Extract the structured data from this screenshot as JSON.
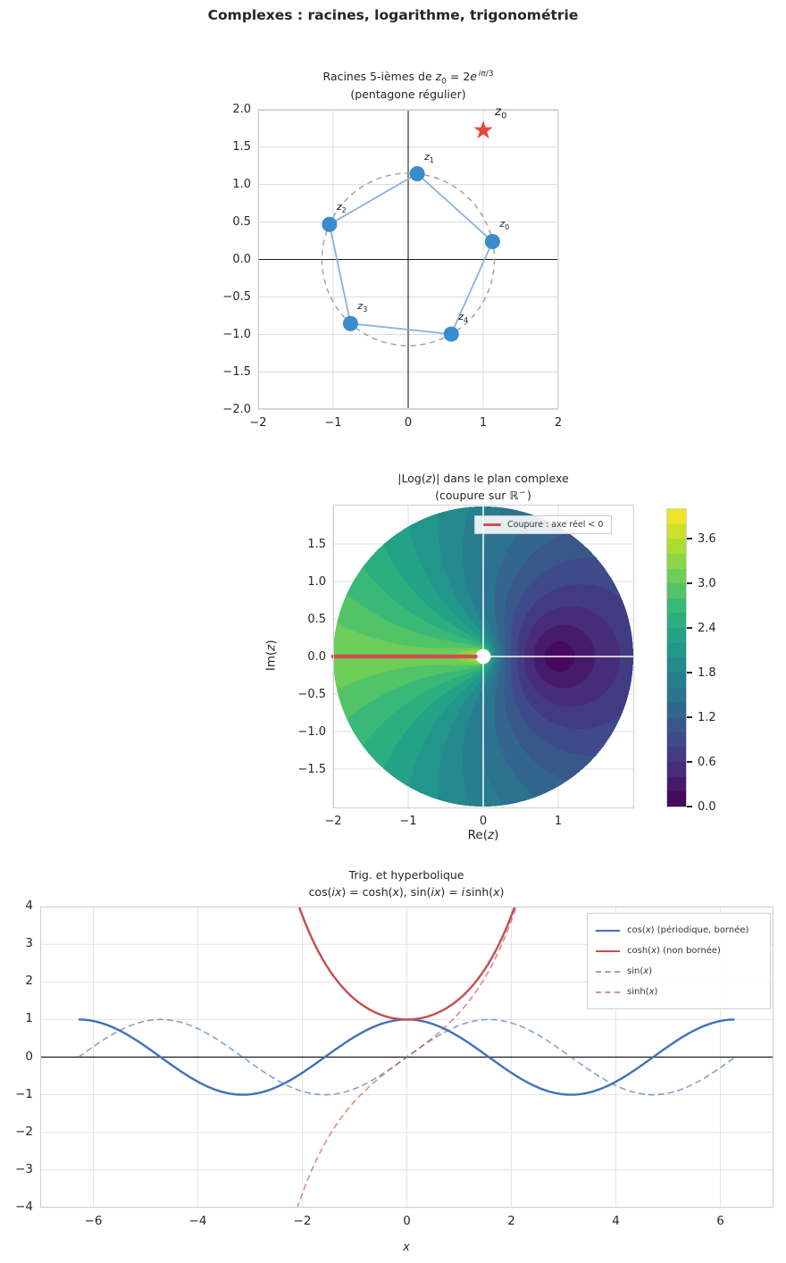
{
  "figure": {
    "title": "Complexes : racines, logarithme, trigonométrie"
  },
  "colors": {
    "marker_blue": "#3a8ccd",
    "pentagon_edge_blue": "#8ab0e2",
    "star_red": "#e8473c",
    "cut_red": "#cf4f52",
    "deep_blue": "#4170bf",
    "deep_red": "#c44e52",
    "grid": "#dcdcdc",
    "spine": "#cfcfcf",
    "text": "#262626",
    "dashed_circle_gray": "#a3a3a3"
  },
  "chart_data": [
    {
      "type": "scatter",
      "title_html": "Racines 5-ièmes de <i>z</i><sub>0</sub> = 2<i>e</i><sup>&#8201;<i>iπ</i>/3</sup>",
      "subtitle": "(pentagone régulier)",
      "xlim": [
        -2,
        2
      ],
      "ylim": [
        -2,
        2
      ],
      "grid": true,
      "x_ticks": [
        {
          "v": -2,
          "label": "−2"
        },
        {
          "v": -1,
          "label": "−1"
        },
        {
          "v": 0,
          "label": "0"
        },
        {
          "v": 1,
          "label": "1"
        },
        {
          "v": 2,
          "label": "2"
        }
      ],
      "y_ticks": [
        {
          "v": 2.0,
          "label": "2.0"
        },
        {
          "v": 1.5,
          "label": "1.5"
        },
        {
          "v": 1.0,
          "label": "1.0"
        },
        {
          "v": 0.5,
          "label": "0.5"
        },
        {
          "v": 0.0,
          "label": "0.0"
        },
        {
          "v": -0.5,
          "label": "−0.5"
        },
        {
          "v": -1.0,
          "label": "−1.0"
        },
        {
          "v": -1.5,
          "label": "−1.5"
        },
        {
          "v": -2.0,
          "label": "−2.0"
        }
      ],
      "circle_radius": 1.1487,
      "points": [
        {
          "label_html": "<i>z</i><sub>0</sub>",
          "re": 1.1236,
          "im": 0.2388
        },
        {
          "label_html": "<i>z</i><sub>1</sub>",
          "re": 0.1201,
          "im": 1.1424
        },
        {
          "label_html": "<i>z</i><sub>2</sub>",
          "re": -1.0493,
          "im": 0.4672
        },
        {
          "label_html": "<i>z</i><sub>3</sub>",
          "re": -0.7687,
          "im": -0.8537
        },
        {
          "label_html": "<i>z</i><sub>4</sub>",
          "re": 0.5743,
          "im": -0.9948
        }
      ],
      "star": {
        "label_html": "<i>z</i><sub>0</sub>",
        "re": 1.0,
        "im": 1.7321
      }
    },
    {
      "type": "heatmap",
      "title_html": "|Log(<i>z</i>)| dans le plan complexe",
      "subtitle_html": "(coupure sur ℝ<sup>&#8202;−</sup>&#8202;)",
      "xlabel_html": "Re(<i>z</i>)",
      "ylabel_html": "Im(<i>z</i>)",
      "x_ticks": [
        {
          "v": -2,
          "label": "−2"
        },
        {
          "v": -1,
          "label": "−1"
        },
        {
          "v": 0,
          "label": "0"
        },
        {
          "v": 1,
          "label": "1"
        }
      ],
      "y_ticks": [
        {
          "v": 1.5,
          "label": "1.5"
        },
        {
          "v": 1.0,
          "label": "1.0"
        },
        {
          "v": 0.5,
          "label": "0.5"
        },
        {
          "v": 0.0,
          "label": "0.0"
        },
        {
          "v": -0.5,
          "label": "−0.5"
        },
        {
          "v": -1.0,
          "label": "−1.0"
        },
        {
          "v": -1.5,
          "label": "−1.5"
        }
      ],
      "value_function": "|Log(z)| = sqrt( ln|z|^2 + Arg(z)^2 ),  Arg ∈ (−π, π]",
      "domain": "disque |z| ≤ 2, masque |z| < 0.1",
      "disk_radius": 2,
      "mask_radius": 0.1,
      "levels": {
        "min": 0,
        "max": 4,
        "step": 0.2,
        "n_bands": 20
      },
      "colormap": "viridis",
      "viridis_stops": [
        "#440154",
        "#482878",
        "#3e4989",
        "#31688e",
        "#26828e",
        "#1f9e89",
        "#35b779",
        "#6ece58",
        "#b5de2b",
        "#fde725"
      ],
      "cut": {
        "y": 0,
        "x_from": -2,
        "x_to": -0.1,
        "label": "Coupure : axe réel < 0"
      },
      "colorbar_ticks": [
        {
          "v": 3.6,
          "label": "3.6"
        },
        {
          "v": 3.0,
          "label": "3.0"
        },
        {
          "v": 2.4,
          "label": "2.4"
        },
        {
          "v": 1.8,
          "label": "1.8"
        },
        {
          "v": 1.2,
          "label": "1.2"
        },
        {
          "v": 0.6,
          "label": "0.6"
        },
        {
          "v": 0.0,
          "label": "0.0"
        }
      ]
    },
    {
      "type": "line",
      "title": "Trig. et hyperbolique",
      "subtitle_html": "cos(<i>ix</i>) = cosh(<i>x</i>), sin(<i>ix</i>) = <i>i</i>&#8202;sinh(<i>x</i>)",
      "xlabel_html": "<i>x</i>",
      "xlim": [
        -7.02,
        7.02
      ],
      "ylim": [
        -4,
        4
      ],
      "x_domain": [
        -6.2832,
        6.2832
      ],
      "x_ticks": [
        {
          "v": -6,
          "label": "−6"
        },
        {
          "v": -4,
          "label": "−4"
        },
        {
          "v": -2,
          "label": "−2"
        },
        {
          "v": 0,
          "label": "0"
        },
        {
          "v": 2,
          "label": "2"
        },
        {
          "v": 4,
          "label": "4"
        },
        {
          "v": 6,
          "label": "6"
        }
      ],
      "y_ticks": [
        {
          "v": 4,
          "label": "4"
        },
        {
          "v": 3,
          "label": "3"
        },
        {
          "v": 2,
          "label": "2"
        },
        {
          "v": 1,
          "label": "1"
        },
        {
          "v": 0,
          "label": "0"
        },
        {
          "v": -1,
          "label": "−1"
        },
        {
          "v": -2,
          "label": "−2"
        },
        {
          "v": -3,
          "label": "−3"
        },
        {
          "v": -4,
          "label": "−4"
        }
      ],
      "series": [
        {
          "fn": "cos",
          "label_html": "cos(<i>x</i>) (périodique, bornée)",
          "color": "#4170bf",
          "dashed": false,
          "width": 2.4,
          "opacity": 1
        },
        {
          "fn": "cosh",
          "label_html": "cosh(<i>x</i>) (non bornée)",
          "color": "#c44e52",
          "dashed": false,
          "width": 2.4,
          "opacity": 1
        },
        {
          "fn": "sin",
          "label_html": "sin(<i>x</i>)",
          "color": "#4170bf",
          "dashed": true,
          "width": 1.7,
          "opacity": 0.62
        },
        {
          "fn": "sinh",
          "label_html": "sinh(<i>x</i>)",
          "color": "#c44e52",
          "dashed": true,
          "width": 1.7,
          "opacity": 0.62
        }
      ]
    }
  ]
}
